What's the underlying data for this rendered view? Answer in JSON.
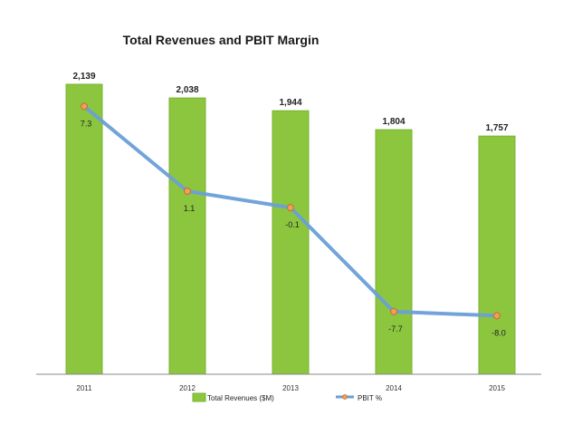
{
  "chart_data": {
    "type": "bar",
    "title": "Total Revenues and PBIT Margin",
    "categories": [
      "2011",
      "2012",
      "2013",
      "2014",
      "2015"
    ],
    "series": [
      {
        "name": "Total Revenues ($M)",
        "type": "bar",
        "values": [
          2139,
          2038,
          1944,
          1804,
          1757
        ],
        "labels": [
          "2,139",
          "2,038",
          "1,944",
          "1,804",
          "1,757"
        ],
        "color": "#8cc63f"
      },
      {
        "name": "PBIT %",
        "type": "line",
        "values": [
          7.3,
          1.1,
          -0.1,
          -7.7,
          -8.0
        ],
        "labels": [
          "7.3",
          "1.1",
          "-0.1",
          "-7.7",
          "-8.0"
        ],
        "color": "#6a9fd8",
        "marker_color": "#f0a050"
      }
    ],
    "bar_ylim": [
      0,
      2400
    ],
    "line_ylim": [
      -12,
      10
    ],
    "legend_position": "bottom",
    "grid": false
  }
}
